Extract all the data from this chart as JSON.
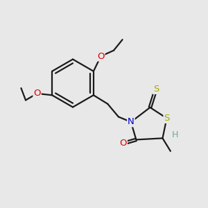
{
  "background_color": "#e8e8e8",
  "bond_color": "#1a1a1a",
  "atom_colors": {
    "O": "#dd0000",
    "N": "#0000cc",
    "S": "#aaaa00",
    "H": "#66aaaa",
    "C": "#1a1a1a"
  },
  "figsize": [
    3.0,
    3.0
  ],
  "dpi": 100,
  "xlim": [
    0,
    10
  ],
  "ylim": [
    0,
    10
  ]
}
